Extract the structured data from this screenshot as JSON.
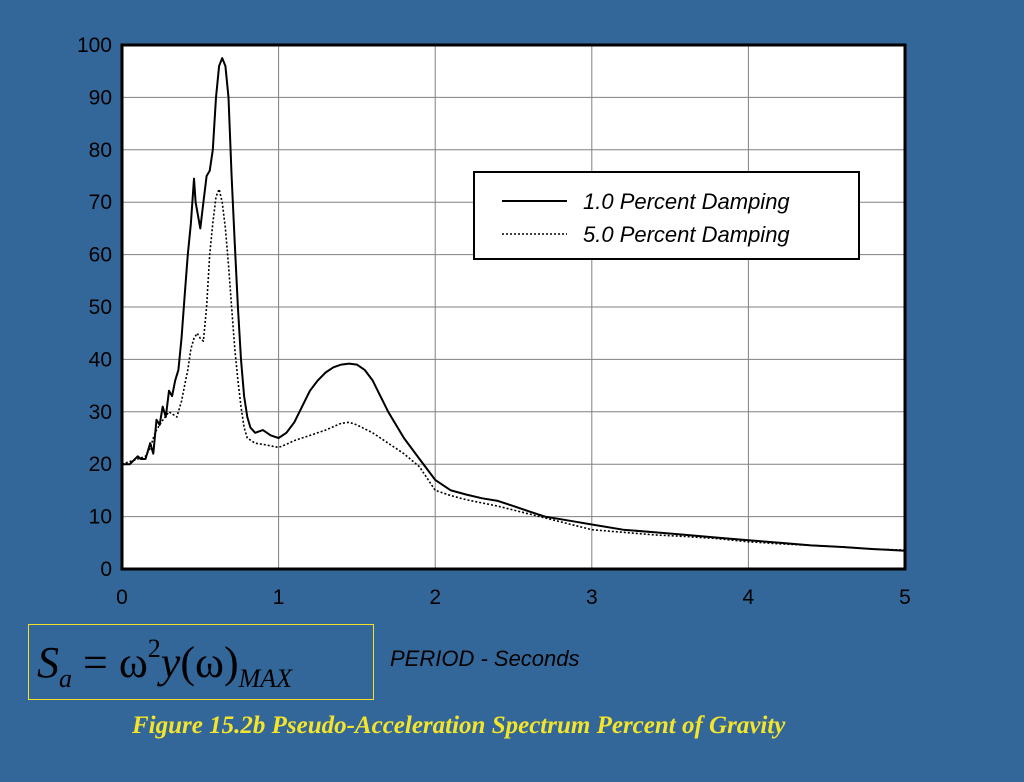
{
  "caption": "Figure 15.2b  Pseudo-Acceleration Spectrum Percent of Gravity",
  "formula": {
    "base": "S",
    "base_sub": "a",
    "equals": " = ",
    "omega": "ω",
    "power": "2",
    "func": "y",
    "open": "(",
    "arg": "ω",
    "close": ")",
    "sub": "MAX"
  },
  "chart_data": {
    "type": "line",
    "title": "",
    "xlabel": "PERIOD - Seconds",
    "ylabel": "",
    "xlim": [
      0,
      5
    ],
    "ylim": [
      0,
      100
    ],
    "xticks": [
      "0",
      "1",
      "2",
      "3",
      "4",
      "5"
    ],
    "yticks": [
      "0",
      "10",
      "20",
      "30",
      "40",
      "50",
      "60",
      "70",
      "80",
      "90",
      "100"
    ],
    "grid": true,
    "legend_position": "upper-right",
    "series": [
      {
        "name": "1.0 Percent Damping",
        "style": "solid",
        "x": [
          0.0,
          0.05,
          0.1,
          0.12,
          0.15,
          0.18,
          0.2,
          0.22,
          0.24,
          0.26,
          0.28,
          0.3,
          0.32,
          0.34,
          0.36,
          0.38,
          0.4,
          0.42,
          0.44,
          0.46,
          0.47,
          0.5,
          0.52,
          0.54,
          0.56,
          0.58,
          0.6,
          0.62,
          0.64,
          0.66,
          0.68,
          0.7,
          0.72,
          0.74,
          0.76,
          0.78,
          0.8,
          0.82,
          0.85,
          0.9,
          0.95,
          1.0,
          1.05,
          1.1,
          1.15,
          1.2,
          1.25,
          1.3,
          1.35,
          1.4,
          1.45,
          1.5,
          1.55,
          1.6,
          1.7,
          1.8,
          1.9,
          2.0,
          2.1,
          2.2,
          2.3,
          2.4,
          2.5,
          2.6,
          2.7,
          2.8,
          2.9,
          3.0,
          3.2,
          3.4,
          3.6,
          3.8,
          4.0,
          4.2,
          4.4,
          4.6,
          4.8,
          5.0
        ],
        "y": [
          20.0,
          20.0,
          21.5,
          21.0,
          21.0,
          24.0,
          22.0,
          28.5,
          27.5,
          31.0,
          29.0,
          34.0,
          33.0,
          36.0,
          38.0,
          44.0,
          52.0,
          60.0,
          66.0,
          74.5,
          70.0,
          65.0,
          70.0,
          75.0,
          76.0,
          80.0,
          90.0,
          96.0,
          97.5,
          96.0,
          90.0,
          75.0,
          62.0,
          50.0,
          40.0,
          33.0,
          29.0,
          27.0,
          26.0,
          26.5,
          25.5,
          25.0,
          26.0,
          28.0,
          31.0,
          34.0,
          36.0,
          37.5,
          38.5,
          39.0,
          39.2,
          39.0,
          38.0,
          36.0,
          30.0,
          25.0,
          21.0,
          17.0,
          15.0,
          14.2,
          13.5,
          13.0,
          12.0,
          11.0,
          10.0,
          9.5,
          9.0,
          8.5,
          7.5,
          7.0,
          6.5,
          6.0,
          5.5,
          5.0,
          4.5,
          4.2,
          3.8,
          3.5
        ]
      },
      {
        "name": "5.0 Percent Damping",
        "style": "dotted",
        "x": [
          0.0,
          0.1,
          0.15,
          0.18,
          0.2,
          0.22,
          0.25,
          0.3,
          0.35,
          0.38,
          0.4,
          0.42,
          0.44,
          0.46,
          0.48,
          0.5,
          0.52,
          0.54,
          0.56,
          0.58,
          0.6,
          0.62,
          0.64,
          0.66,
          0.68,
          0.7,
          0.72,
          0.74,
          0.76,
          0.78,
          0.8,
          0.85,
          0.9,
          0.95,
          1.0,
          1.05,
          1.1,
          1.2,
          1.3,
          1.4,
          1.45,
          1.5,
          1.6,
          1.7,
          1.8,
          1.9,
          2.0,
          2.1,
          2.2,
          2.4,
          2.6,
          2.8,
          3.0,
          3.2,
          3.4,
          3.6,
          3.8,
          4.0,
          4.2,
          4.4,
          4.6,
          4.8,
          5.0
        ],
        "y": [
          20.0,
          21.0,
          21.5,
          23.0,
          25.0,
          26.5,
          28.0,
          30.0,
          29.0,
          32.0,
          35.0,
          38.0,
          42.0,
          44.0,
          45.0,
          44.0,
          43.5,
          50.0,
          60.0,
          66.0,
          71.0,
          72.5,
          70.0,
          65.0,
          58.0,
          50.0,
          42.0,
          36.0,
          31.0,
          27.0,
          25.0,
          24.0,
          23.8,
          23.5,
          23.2,
          23.8,
          24.5,
          25.5,
          26.5,
          27.8,
          28.0,
          27.5,
          26.0,
          24.0,
          22.0,
          19.5,
          15.0,
          14.0,
          13.2,
          12.0,
          10.5,
          9.0,
          7.5,
          7.0,
          6.5,
          6.2,
          5.8,
          5.2,
          4.8,
          4.5,
          4.2,
          3.8,
          3.6
        ]
      }
    ]
  }
}
